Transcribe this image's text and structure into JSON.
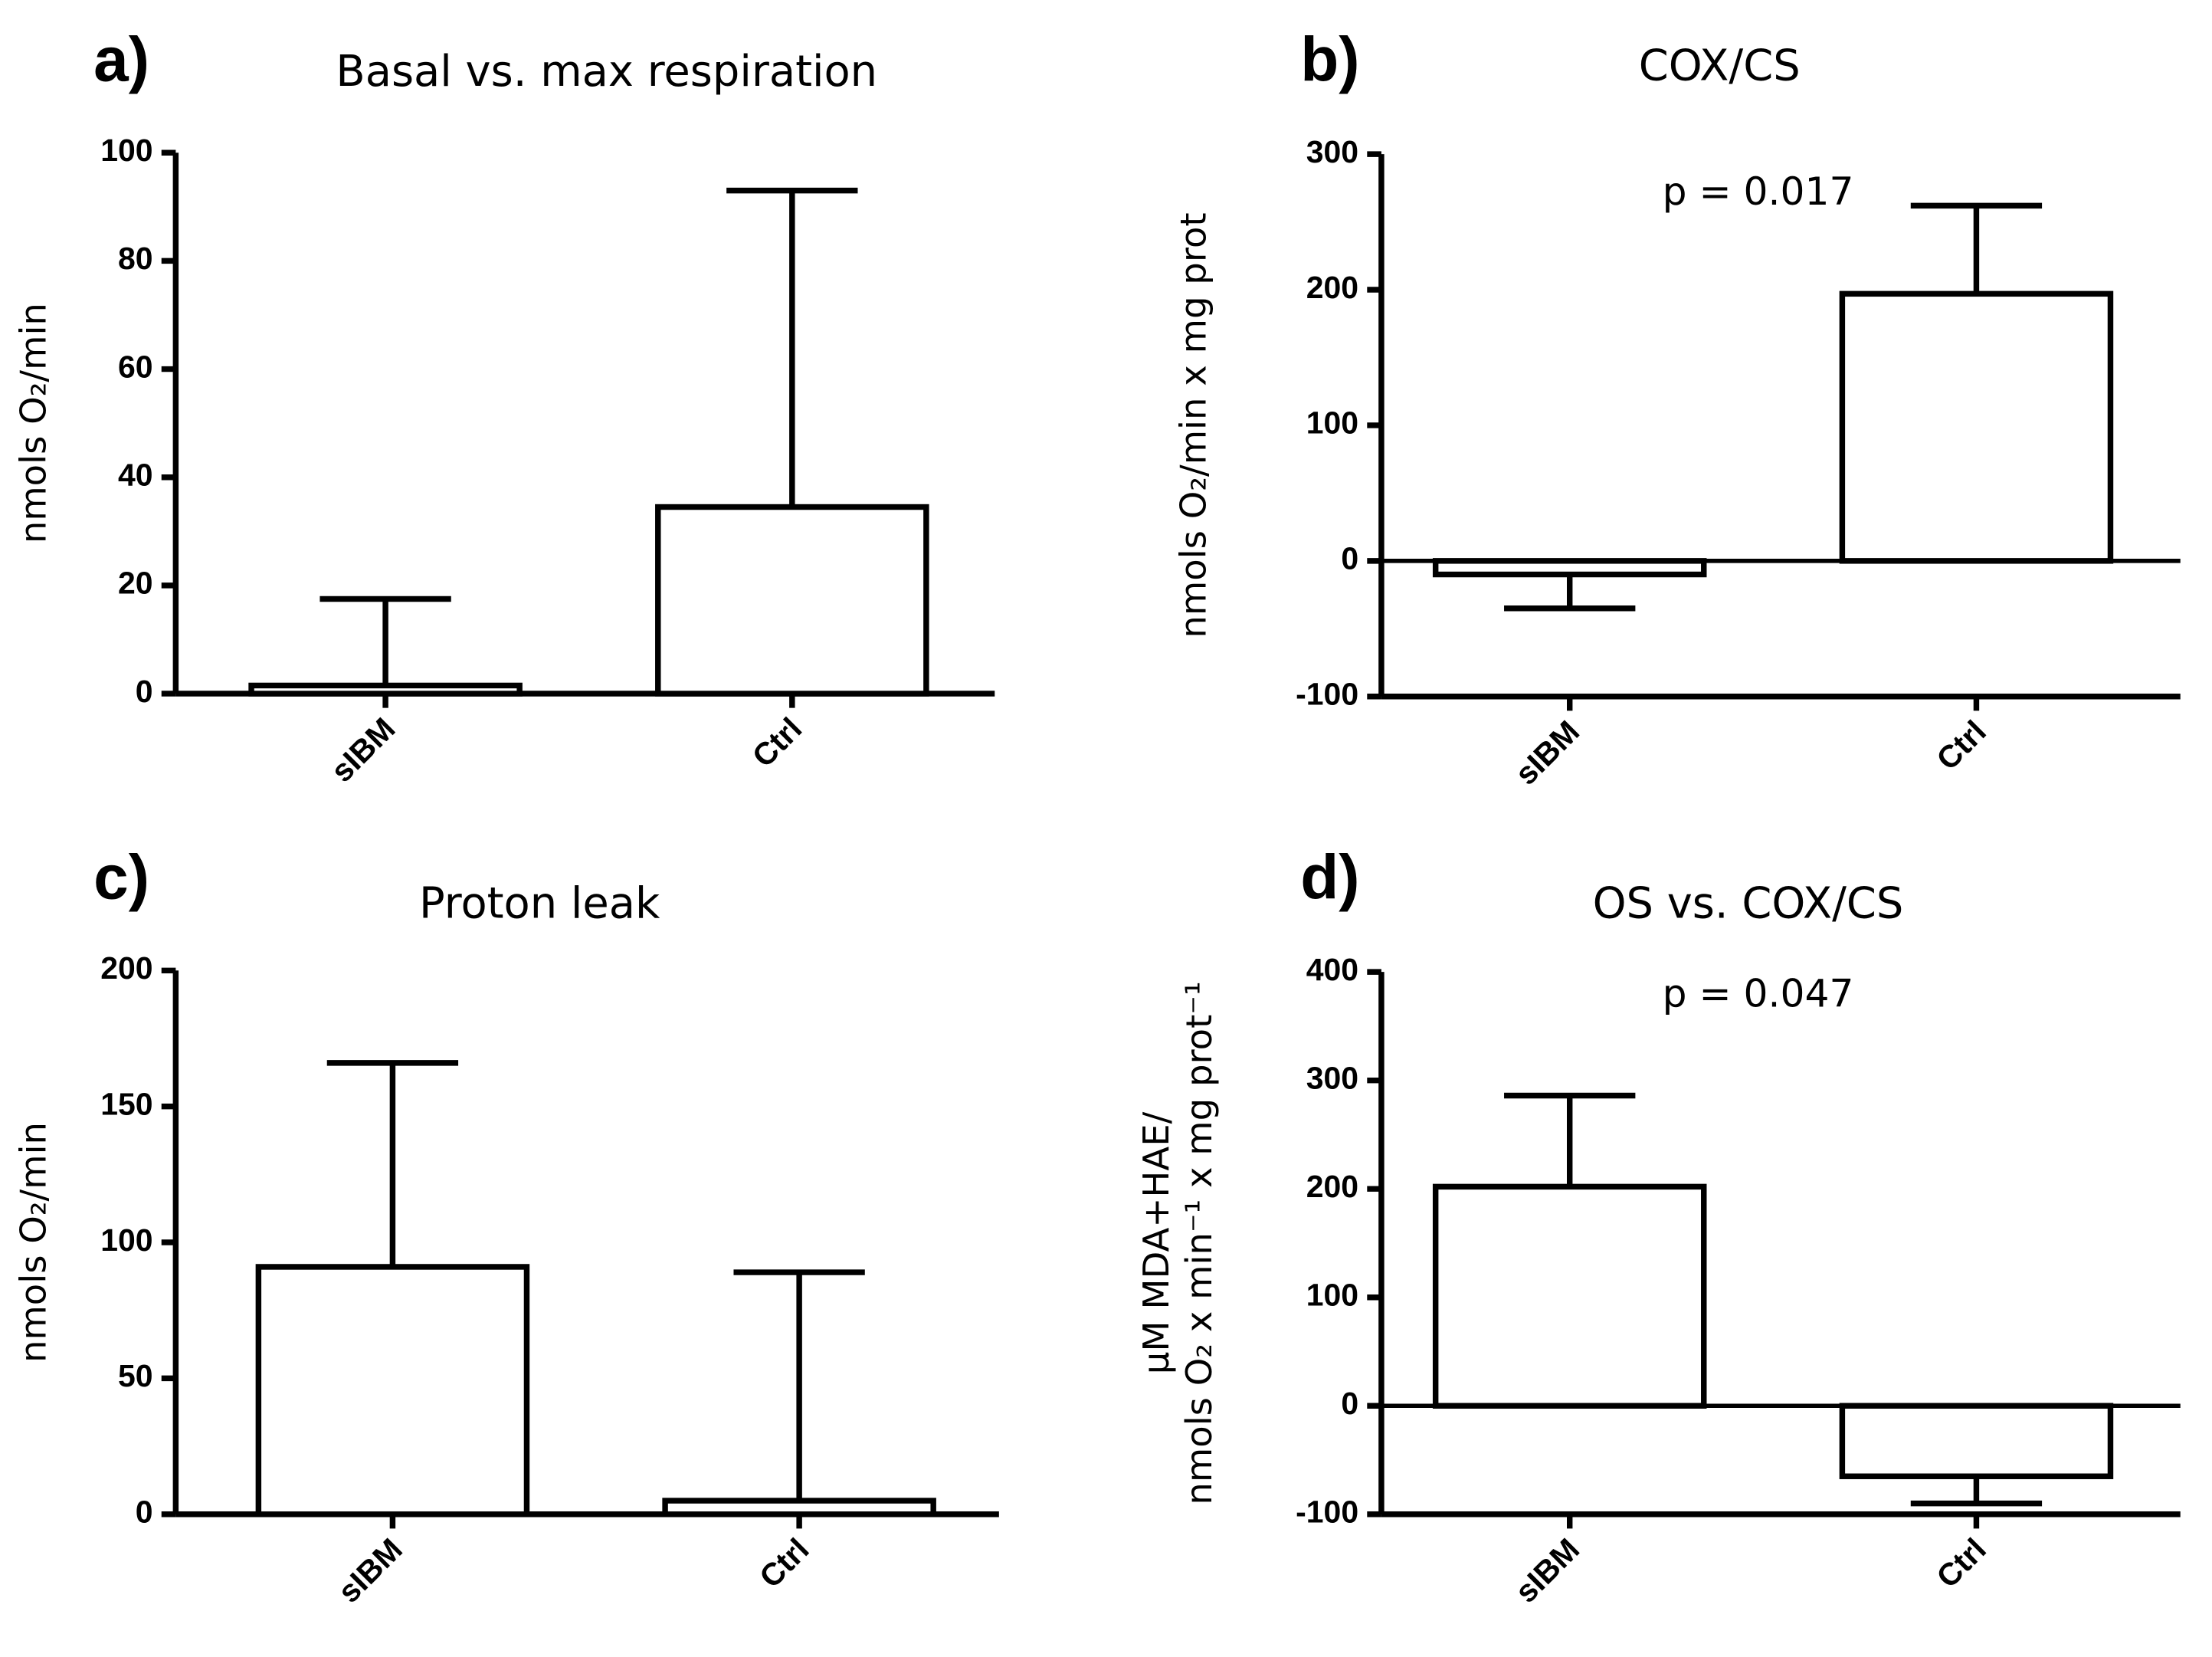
{
  "chart_data": [
    {
      "type": "bar",
      "panel": "a)",
      "title": "Basal vs. max respiration",
      "y_label": "nmols O₂/min",
      "categories": [
        "sIBM",
        "Ctrl"
      ],
      "values": [
        1.5,
        34.5
      ],
      "errors": [
        16,
        58.5
      ],
      "ylim": [
        0,
        100
      ],
      "yticks": [
        0,
        20,
        40,
        60,
        80,
        100
      ],
      "color": "#ffffff"
    },
    {
      "type": "bar",
      "panel": "b)",
      "title": "COX/CS",
      "y_label": "nmols O₂/min  x mg prot",
      "annotation": "p = 0.017",
      "categories": [
        "sIBM",
        "Ctrl"
      ],
      "values": [
        -10,
        197
      ],
      "errors": [
        25,
        65
      ],
      "ylim": [
        -100,
        300
      ],
      "yticks": [
        -100,
        0,
        100,
        200,
        300
      ],
      "color": "#ffffff"
    },
    {
      "type": "bar",
      "panel": "c)",
      "title": "Proton leak",
      "y_label": "nmols O₂/min",
      "categories": [
        "sIBM",
        "Ctrl"
      ],
      "values": [
        91,
        5
      ],
      "errors": [
        75,
        84
      ],
      "ylim": [
        0,
        200
      ],
      "yticks": [
        0,
        50,
        100,
        150,
        200
      ],
      "color": "#ffffff"
    },
    {
      "type": "bar",
      "panel": "d)",
      "title": "OS vs. COX/CS",
      "y_label": [
        "µM MDA+HAE/",
        "nmols O₂ x min⁻¹ x mg prot⁻¹"
      ],
      "annotation": "p = 0.047",
      "categories": [
        "sIBM",
        "Ctrl"
      ],
      "values": [
        202,
        -65
      ],
      "errors": [
        84,
        25
      ],
      "ylim": [
        -100,
        400
      ],
      "yticks": [
        -100,
        0,
        100,
        200,
        300,
        400
      ],
      "color": "#ffffff"
    }
  ]
}
